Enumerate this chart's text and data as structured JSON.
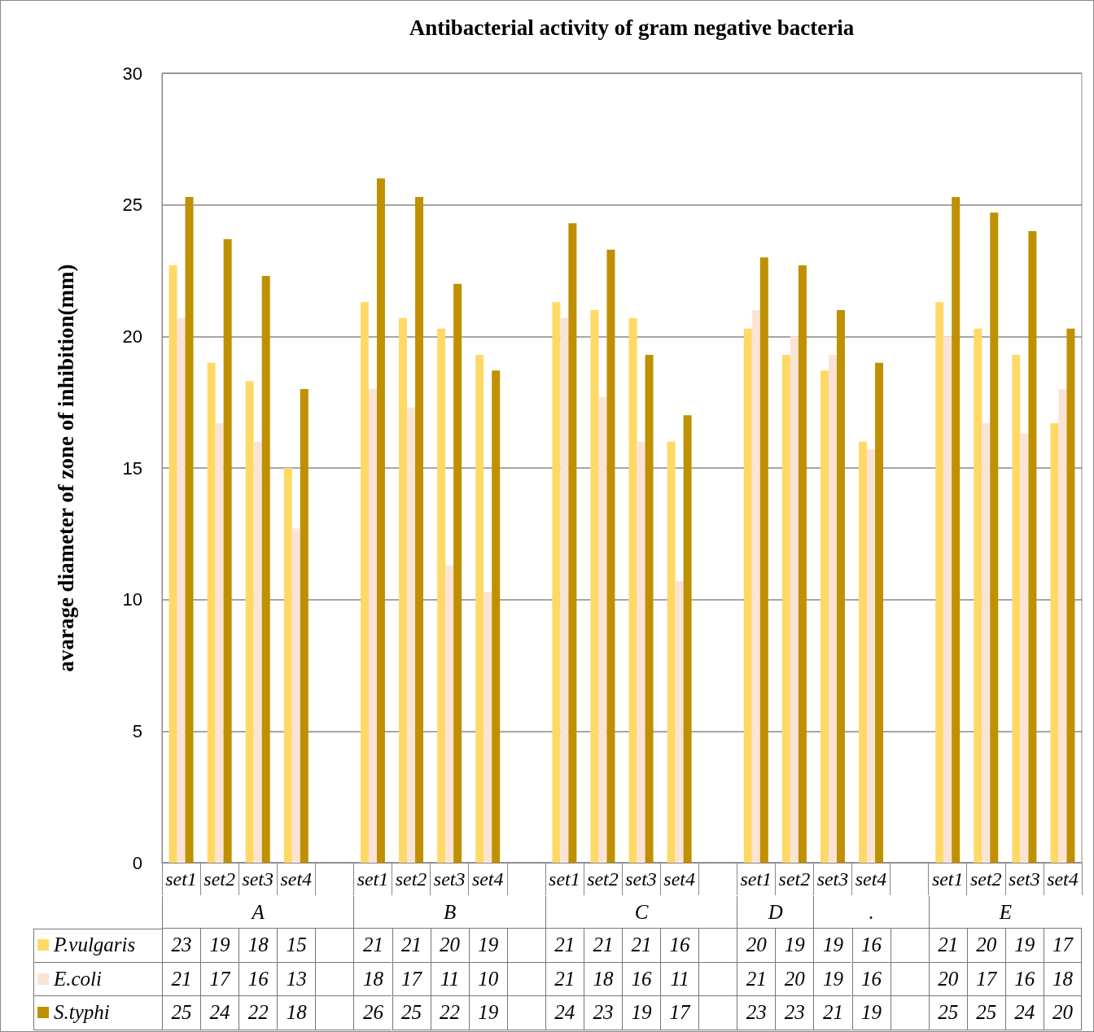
{
  "chart_data": {
    "type": "bar",
    "title": "Antibacterial activity of gram negative bacteria",
    "ylabel": "avarage diameter of zone of inhibition(mm)",
    "categories": [
      "set1",
      "set2",
      "set3",
      "set4",
      null,
      "set1",
      "set2",
      "set3",
      "set4",
      null,
      "set1",
      "set2",
      "set3",
      "set4",
      null,
      "set1",
      "set2",
      "set3",
      "set4",
      null,
      "set1",
      "set2",
      "set3",
      "set4"
    ],
    "annotations": [
      "A",
      "B",
      "C",
      "D",
      ".",
      "E"
    ],
    "series": [
      {
        "name": "P.vulgaris",
        "color": "#ffd966",
        "values": [
          22.7,
          19.0,
          18.3,
          15.0,
          null,
          21.3,
          20.7,
          20.3,
          19.3,
          null,
          21.3,
          21.0,
          20.7,
          16.0,
          null,
          20.3,
          19.3,
          18.7,
          16.0,
          null,
          21.3,
          20.3,
          19.3,
          16.7
        ],
        "value_labels": [
          "23",
          "19",
          "18",
          "15",
          null,
          "21",
          "21",
          "20",
          "19",
          null,
          "21",
          "21",
          "21",
          "16",
          null,
          "20",
          "19",
          "19",
          "16",
          null,
          "21",
          "20",
          "19",
          "17"
        ]
      },
      {
        "name": "E.coli",
        "color": "#fbe4d5",
        "values": [
          20.7,
          16.7,
          16.0,
          12.7,
          null,
          18.0,
          17.3,
          11.3,
          10.3,
          null,
          20.7,
          17.7,
          16.0,
          10.7,
          null,
          21.0,
          20.0,
          19.3,
          15.7,
          null,
          20.0,
          16.7,
          16.3,
          18.0
        ],
        "value_labels": [
          "21",
          "17",
          "16",
          "13",
          null,
          "18",
          "17",
          "11",
          "10",
          null,
          "21",
          "18",
          "16",
          "11",
          null,
          "21",
          "20",
          "19",
          "16",
          null,
          "20",
          "17",
          "16",
          "18"
        ]
      },
      {
        "name": "S.typhi",
        "color": "#bf9000",
        "values": [
          25.3,
          23.7,
          22.3,
          18.0,
          null,
          26.0,
          25.3,
          22.0,
          18.7,
          null,
          24.3,
          23.3,
          19.3,
          17.0,
          null,
          23.0,
          22.7,
          21.0,
          19.0,
          null,
          25.3,
          24.7,
          24.0,
          20.3
        ],
        "value_labels": [
          "25",
          "24",
          "22",
          "18",
          null,
          "26",
          "25",
          "22",
          "19",
          null,
          "24",
          "23",
          "19",
          "17",
          null,
          "23",
          "23",
          "21",
          "19",
          null,
          "25",
          "25",
          "24",
          "20"
        ]
      }
    ],
    "ylim": [
      0,
      30
    ],
    "yticks": [
      0,
      5,
      10,
      15,
      20,
      25,
      30
    ],
    "grid": "y",
    "legend": "bottom left"
  }
}
